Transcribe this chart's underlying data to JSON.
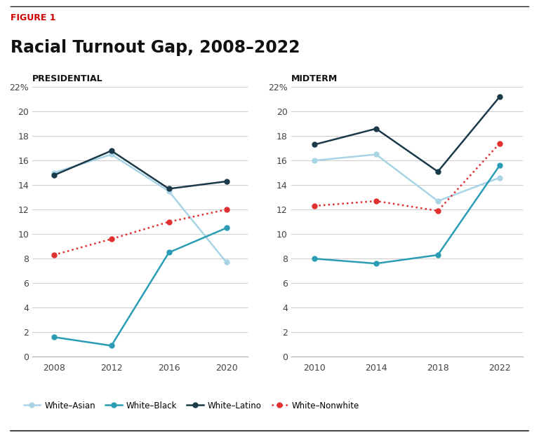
{
  "title": "Racial Turnout Gap, 2008–2022",
  "figure_label": "FIGURE 1",
  "subtitle_left": "PRESIDENTIAL",
  "subtitle_right": "MIDTERM",
  "pres_years": [
    2008,
    2012,
    2016,
    2020
  ],
  "pres_white_asian": [
    15.0,
    16.5,
    13.5,
    7.7
  ],
  "pres_white_black": [
    1.6,
    0.9,
    8.5,
    10.5
  ],
  "pres_white_latino": [
    14.8,
    16.8,
    13.7,
    14.3
  ],
  "pres_white_nonwhite": [
    8.3,
    9.6,
    11.0,
    12.0
  ],
  "mid_years": [
    2010,
    2014,
    2018,
    2022
  ],
  "mid_white_asian": [
    16.0,
    16.5,
    12.7,
    14.6
  ],
  "mid_white_black": [
    8.0,
    7.6,
    8.3,
    15.6
  ],
  "mid_white_latino": [
    17.3,
    18.6,
    15.1,
    21.2
  ],
  "mid_white_nonwhite": [
    12.3,
    12.7,
    11.9,
    17.4
  ],
  "color_asian": "#a8d4e6",
  "color_black": "#2a9db5",
  "color_latino": "#1a3a4a",
  "color_nonwhite": "#e03030",
  "ylim": [
    0,
    22
  ],
  "yticks": [
    0,
    2,
    4,
    6,
    8,
    10,
    12,
    14,
    16,
    18,
    20,
    22
  ],
  "background_color": "#ffffff",
  "grid_color": "#cccccc"
}
